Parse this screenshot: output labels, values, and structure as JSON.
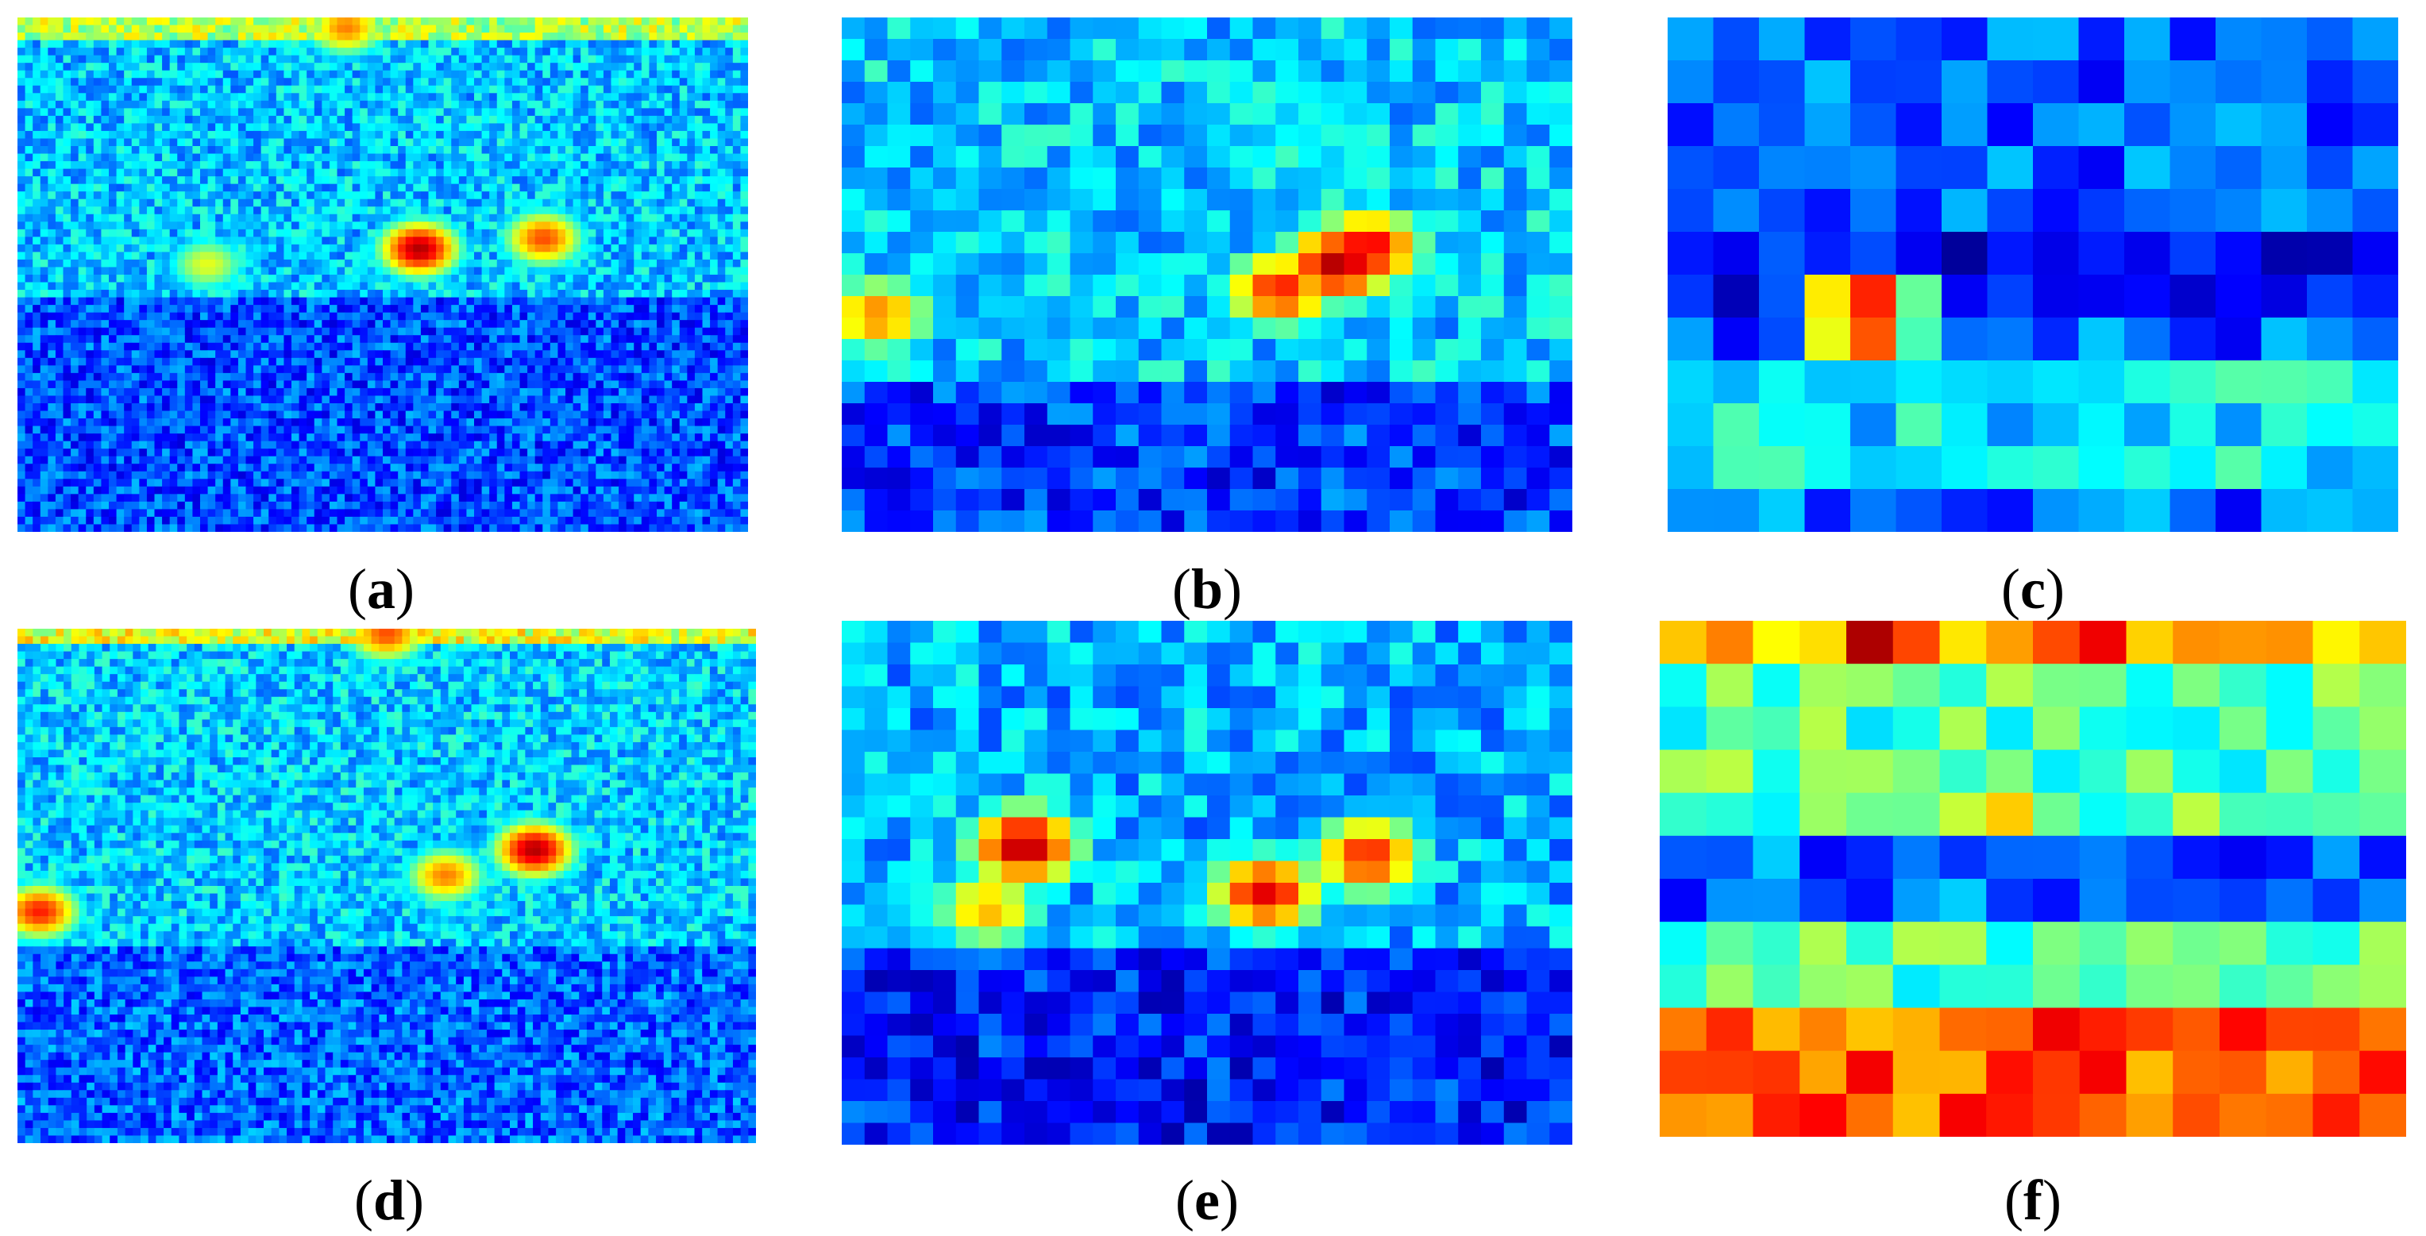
{
  "figure": {
    "panels": [
      {
        "id": "a",
        "label": "a",
        "grid_cols": 96,
        "grid_rows": 68,
        "hot_spots": [
          [
            0.55,
            0.45,
            0.95
          ],
          [
            0.72,
            0.43,
            0.8
          ],
          [
            0.26,
            0.48,
            0.6
          ],
          [
            0.45,
            0.02,
            0.75
          ]
        ]
      },
      {
        "id": "b",
        "label": "b",
        "grid_cols": 32,
        "grid_rows": 24,
        "hot_spots": [
          [
            0.68,
            0.48,
            0.95
          ],
          [
            0.72,
            0.45,
            0.9
          ],
          [
            0.05,
            0.58,
            0.75
          ],
          [
            0.6,
            0.53,
            0.85
          ]
        ]
      },
      {
        "id": "c",
        "label": "c",
        "grid_cols": 16,
        "grid_rows": 12,
        "hot_spots": [
          [
            0.27,
            0.58,
            1.0
          ]
        ]
      },
      {
        "id": "d",
        "label": "d",
        "grid_cols": 96,
        "grid_rows": 68,
        "hot_spots": [
          [
            0.7,
            0.43,
            0.95
          ],
          [
            0.03,
            0.55,
            0.85
          ],
          [
            0.58,
            0.48,
            0.75
          ],
          [
            0.5,
            0.01,
            0.8
          ]
        ]
      },
      {
        "id": "e",
        "label": "e",
        "grid_cols": 32,
        "grid_rows": 24,
        "hot_spots": [
          [
            0.25,
            0.43,
            0.95
          ],
          [
            0.58,
            0.52,
            0.9
          ],
          [
            0.72,
            0.45,
            0.85
          ],
          [
            0.2,
            0.55,
            0.7
          ]
        ]
      },
      {
        "id": "f",
        "label": "f",
        "grid_cols": 16,
        "grid_rows": 12,
        "hot_spots": [
          [
            0.3,
            0.05,
            1.0
          ],
          [
            0.6,
            0.05,
            0.9
          ],
          [
            0.6,
            0.9,
            0.95
          ],
          [
            0.45,
            0.35,
            0.75
          ]
        ]
      }
    ],
    "colormap": "jet"
  }
}
